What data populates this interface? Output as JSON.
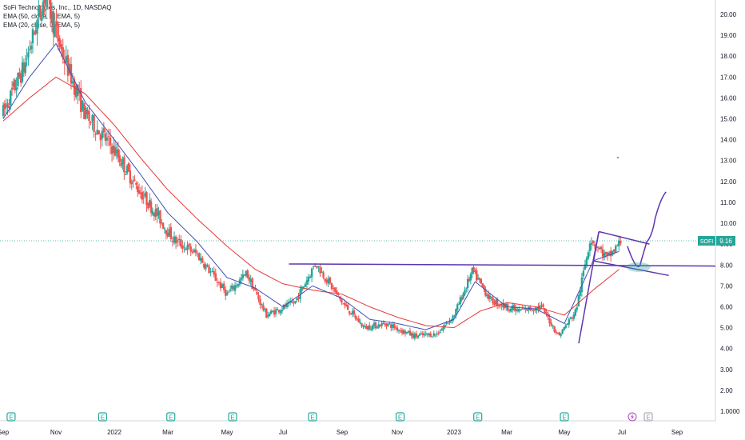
{
  "legend": {
    "title": "SoFi Technologies, Inc., 1D, NASDAQ",
    "ema50": "EMA (50, close, 0, EMA, 5)",
    "ema20": "EMA (20, close, 0, EMA, 5)"
  },
  "price_badge": {
    "symbol": "SOFI",
    "value": "9.16"
  },
  "colors": {
    "up": "#26a69a",
    "down": "#ef5350",
    "ema50": "#e53935",
    "ema20": "#3f51b5",
    "drawing": "#5e35b1",
    "highlight": "#26a69a",
    "earnings": "#26a69a"
  },
  "chart_data": {
    "type": "candlestick",
    "title": "SoFi Technologies, Inc., 1D, NASDAQ",
    "y_ticks": [
      "20.00",
      "19.00",
      "18.00",
      "17.00",
      "16.00",
      "15.00",
      "14.00",
      "13.00",
      "12.00",
      "11.00",
      "10.00",
      "9.00",
      "8.00",
      "7.00",
      "6.00",
      "5.00",
      "4.00",
      "3.00",
      "2.00",
      "1.0000"
    ],
    "x_ticks": [
      "Sep",
      "Nov",
      "2022",
      "Mar",
      "May",
      "Jul",
      "Sep",
      "Nov",
      "2023",
      "Mar",
      "May",
      "Jul",
      "Sep"
    ],
    "ylim": [
      0.6,
      20.4
    ],
    "close_path_by_x_tick": [
      {
        "t": 0,
        "close": 15.3
      },
      {
        "t": 0.4,
        "close": 17.5
      },
      {
        "t": 0.8,
        "close": 21.0
      },
      {
        "t": 1.1,
        "close": 18.2
      },
      {
        "t": 1.5,
        "close": 15.2
      },
      {
        "t": 2.0,
        "close": 13.5
      },
      {
        "t": 2.4,
        "close": 11.8
      },
      {
        "t": 2.8,
        "close": 10.4
      },
      {
        "t": 3.1,
        "close": 9.2
      },
      {
        "t": 3.5,
        "close": 8.5
      },
      {
        "t": 4.0,
        "close": 6.6
      },
      {
        "t": 4.35,
        "close": 7.6
      },
      {
        "t": 4.7,
        "close": 5.6
      },
      {
        "t": 5.2,
        "close": 6.2
      },
      {
        "t": 5.55,
        "close": 8.1
      },
      {
        "t": 6.0,
        "close": 6.2
      },
      {
        "t": 6.4,
        "close": 5.0
      },
      {
        "t": 6.8,
        "close": 5.2
      },
      {
        "t": 7.3,
        "close": 4.6
      },
      {
        "t": 7.7,
        "close": 4.7
      },
      {
        "t": 8.0,
        "close": 5.6
      },
      {
        "t": 8.35,
        "close": 7.7
      },
      {
        "t": 8.7,
        "close": 6.3
      },
      {
        "t": 9.2,
        "close": 5.8
      },
      {
        "t": 9.6,
        "close": 6.0
      },
      {
        "t": 9.9,
        "close": 4.6
      },
      {
        "t": 10.2,
        "close": 5.8
      },
      {
        "t": 10.45,
        "close": 9.3
      },
      {
        "t": 10.75,
        "close": 8.3
      },
      {
        "t": 11.0,
        "close": 9.2
      }
    ],
    "ema50_by_x_tick": [
      {
        "t": 0,
        "close": 14.9
      },
      {
        "t": 0.5,
        "close": 16.0
      },
      {
        "t": 1.0,
        "close": 17.0
      },
      {
        "t": 1.5,
        "close": 16.2
      },
      {
        "t": 2.0,
        "close": 14.7
      },
      {
        "t": 2.5,
        "close": 13.1
      },
      {
        "t": 3.0,
        "close": 11.6
      },
      {
        "t": 3.5,
        "close": 10.2
      },
      {
        "t": 4.0,
        "close": 8.9
      },
      {
        "t": 4.5,
        "close": 7.8
      },
      {
        "t": 5.0,
        "close": 7.1
      },
      {
        "t": 5.5,
        "close": 6.8
      },
      {
        "t": 6.0,
        "close": 6.6
      },
      {
        "t": 6.5,
        "close": 6.0
      },
      {
        "t": 7.0,
        "close": 5.5
      },
      {
        "t": 7.5,
        "close": 5.1
      },
      {
        "t": 8.0,
        "close": 5.0
      },
      {
        "t": 8.5,
        "close": 5.8
      },
      {
        "t": 9.0,
        "close": 6.2
      },
      {
        "t": 9.5,
        "close": 6.0
      },
      {
        "t": 10.0,
        "close": 5.6
      },
      {
        "t": 10.5,
        "close": 6.8
      },
      {
        "t": 11.0,
        "close": 7.9
      }
    ],
    "ema20_by_x_tick": [
      {
        "t": 0,
        "close": 15.0
      },
      {
        "t": 0.5,
        "close": 17.0
      },
      {
        "t": 1.0,
        "close": 18.6
      },
      {
        "t": 1.5,
        "close": 15.8
      },
      {
        "t": 2.0,
        "close": 14.0
      },
      {
        "t": 2.5,
        "close": 12.3
      },
      {
        "t": 3.0,
        "close": 10.5
      },
      {
        "t": 3.5,
        "close": 9.1
      },
      {
        "t": 4.0,
        "close": 7.4
      },
      {
        "t": 4.5,
        "close": 6.9
      },
      {
        "t": 5.0,
        "close": 6.0
      },
      {
        "t": 5.5,
        "close": 7.0
      },
      {
        "t": 6.0,
        "close": 6.4
      },
      {
        "t": 6.5,
        "close": 5.4
      },
      {
        "t": 7.0,
        "close": 5.2
      },
      {
        "t": 7.5,
        "close": 4.9
      },
      {
        "t": 8.0,
        "close": 5.4
      },
      {
        "t": 8.4,
        "close": 7.2
      },
      {
        "t": 9.0,
        "close": 6.0
      },
      {
        "t": 9.5,
        "close": 5.9
      },
      {
        "t": 10.0,
        "close": 5.2
      },
      {
        "t": 10.5,
        "close": 8.2
      },
      {
        "t": 11.0,
        "close": 8.7
      }
    ],
    "horizontal_line": 7.95,
    "current_price_line": 9.16,
    "earnings_x_ticks": [
      0.15,
      1.8,
      3.05,
      4.1,
      5.5,
      7.05,
      8.45,
      10.0
    ]
  }
}
